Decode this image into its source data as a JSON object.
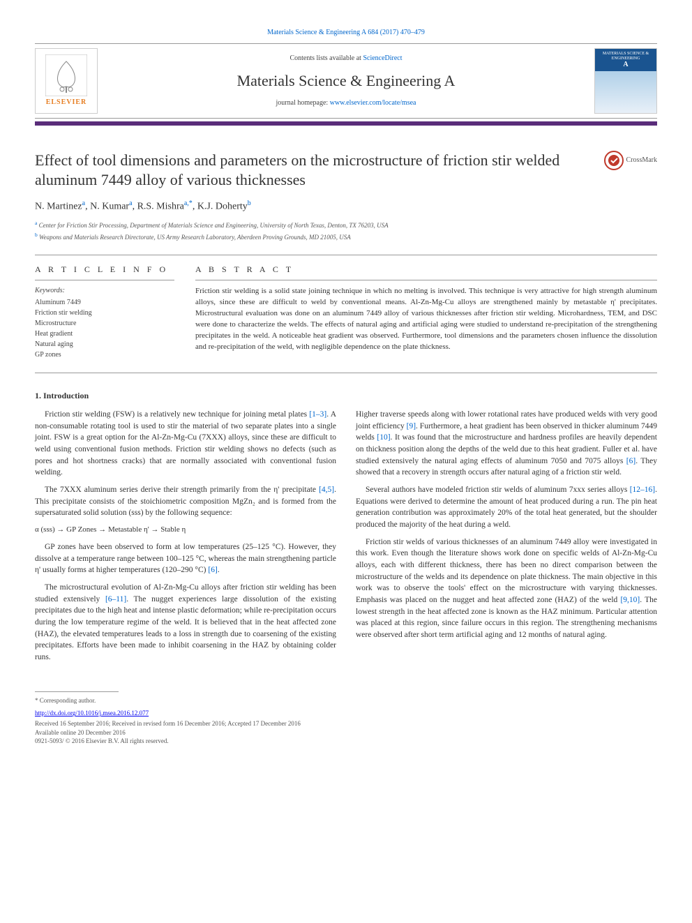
{
  "journal_ref": "Materials Science & Engineering A 684 (2017) 470–479",
  "header": {
    "contents_prefix": "Contents lists available at ",
    "contents_link": "ScienceDirect",
    "journal_name": "Materials Science & Engineering A",
    "homepage_prefix": "journal homepage: ",
    "homepage_link": "www.elsevier.com/locate/msea",
    "elsevier_label": "ELSEVIER",
    "cover_title_line1": "MATERIALS SCIENCE & ENGINEERING",
    "cover_title_line2": "A"
  },
  "crossmark_label": "CrossMark",
  "title": "Effect of tool dimensions and parameters on the microstructure of friction stir welded aluminum 7449 alloy of various thicknesses",
  "authors_html": "N. Martinez<sup>a</sup>, N. Kumar<sup>a</sup>, R.S. Mishra<sup>a,*</sup>, K.J. Doherty<sup>b</sup>",
  "affiliations": {
    "a": "Center for Friction Stir Processing, Department of Materials Science and Engineering, University of North Texas, Denton, TX 76203, USA",
    "b": "Weapons and Materials Research Directorate, US Army Research Laboratory, Aberdeen Proving Grounds, MD 21005, USA"
  },
  "info_heading": "A R T I C L E   I N F O",
  "abstract_heading": "A B S T R A C T",
  "keywords_label": "Keywords:",
  "keywords": [
    "Aluminum 7449",
    "Friction stir welding",
    "Microstructure",
    "Heat gradient",
    "Natural aging",
    "GP zones"
  ],
  "abstract": "Friction stir welding is a solid state joining technique in which no melting is involved. This technique is very attractive for high strength aluminum alloys, since these are difficult to weld by conventional means. Al-Zn-Mg-Cu alloys are strengthened mainly by metastable η' precipitates. Microstructural evaluation was done on an aluminum 7449 alloy of various thicknesses after friction stir welding. Microhardness, TEM, and DSC were done to characterize the welds. The effects of natural aging and artificial aging were studied to understand re-precipitation of the strengthening precipitates in the weld. A noticeable heat gradient was observed. Furthermore, tool dimensions and the parameters chosen influence the dissolution and re-precipitation of the weld, with negligible dependence on the plate thickness.",
  "section1_heading": "1. Introduction",
  "body": {
    "p1": "Friction stir welding (FSW) is a relatively new technique for joining metal plates ",
    "p1_ref": "[1–3]",
    "p1b": ". A non-consumable rotating tool is used to stir the material of two separate plates into a single joint. FSW is a great option for the Al-Zn-Mg-Cu (7XXX) alloys, since these are difficult to weld using conventional fusion methods. Friction stir welding shows no defects (such as pores and hot shortness cracks) that are normally associated with conventional fusion welding.",
    "p2": "The 7XXX aluminum series derive their strength primarily from the η' precipitate ",
    "p2_ref": "[4,5]",
    "p2b": ". This precipitate consists of the stoichiometric composition MgZn₂ and is formed from the supersaturated solid solution (sss) by the following sequence:",
    "seq": "α (sss)  →  GP Zones → Metastable η'  → Stable η",
    "p3": "GP zones have been observed to form at low temperatures (25–125 °C). However, they dissolve at a temperature range between 100–125 °C, whereas the main strengthening particle η' usually forms at higher temperatures (120–290 °C) ",
    "p3_ref": "[6]",
    "p3b": ".",
    "p4": "The microstructural evolution of Al-Zn-Mg-Cu alloys after friction stir welding has been studied extensively ",
    "p4_ref": "[6–11]",
    "p4b": ". The nugget experiences large dissolution of the existing precipitates due to the high heat and intense plastic deformation; while re-precipitation occurs during the low temperature regime of the weld. It is believed that in the heat affected zone (HAZ), the elevated temperatures leads to a loss in strength due to coarsening of the existing precipitates. Efforts have been made to inhibit coarsening in the HAZ by obtaining colder runs.",
    "p5a": "Higher traverse speeds along with lower rotational rates have produced welds with very good joint efficiency ",
    "p5a_ref": "[9]",
    "p5b": ". Furthermore, a heat gradient has been observed in thicker aluminum 7449 welds ",
    "p5b_ref": "[10]",
    "p5c": ". It was found that the microstructure and hardness profiles are heavily dependent on thickness position along the depths of the weld due to this heat gradient. Fuller et al. have studied extensively the natural aging effects of aluminum 7050 and 7075 alloys ",
    "p5c_ref": "[6]",
    "p5d": ". They showed that a recovery in strength occurs after natural aging of a friction stir weld.",
    "p6": "Several authors have modeled friction stir welds of aluminum 7xxx series alloys ",
    "p6_ref": "[12–16]",
    "p6b": ". Equations were derived to determine the amount of heat produced during a run. The pin heat generation contribution was approximately 20% of the total heat generated, but the shoulder produced the majority of the heat during a weld.",
    "p7": "Friction stir welds of various thicknesses of an aluminum 7449 alloy were investigated in this work. Even though the literature shows work done on specific welds of Al-Zn-Mg-Cu alloys, each with different thickness, there has been no direct comparison between the microstructure of the welds and its dependence on plate thickness. The main objective in this work was to observe the tools' effect on the microstructure with varying thicknesses. Emphasis was placed on the nugget and heat affected zone (HAZ) of the weld ",
    "p7_ref": "[9,10]",
    "p7b": ". The lowest strength in the heat affected zone is known as the HAZ minimum. Particular attention was placed at this region, since failure occurs in this region. The strengthening mechanisms were observed after short term artificial aging and 12 months of natural aging."
  },
  "footnote": {
    "corresponding": "* Corresponding author.",
    "doi": "http://dx.doi.org/10.1016/j.msea.2016.12.077",
    "received": "Received 16 September 2016; Received in revised form 16 December 2016; Accepted 17 December 2016",
    "available": "Available online 20 December 2016",
    "copyright": "0921-5093/ © 2016 Elsevier B.V. All rights reserved."
  },
  "colors": {
    "link": "#0066cc",
    "purple_bar": "#5a2d7a",
    "elsevier_orange": "#e67e22",
    "cover_blue": "#1a5490"
  }
}
